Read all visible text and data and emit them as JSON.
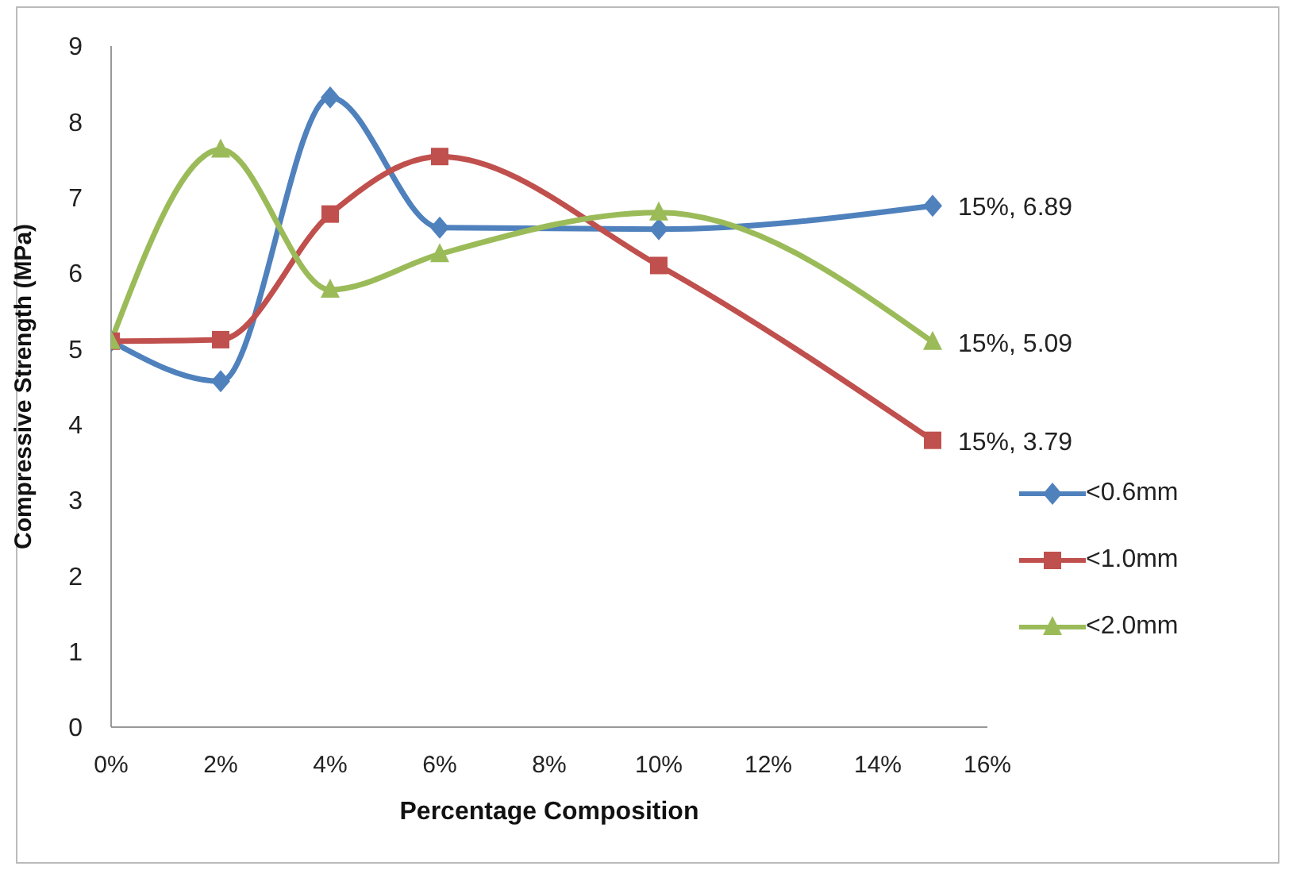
{
  "chart_data": {
    "type": "line",
    "xlabel": "Percentage Composition",
    "ylabel": "Compressive Strength (MPa)",
    "x": [
      0,
      2,
      4,
      6,
      10,
      15
    ],
    "xlim": [
      0,
      16
    ],
    "xticks": [
      {
        "value": 0,
        "label": "0%"
      },
      {
        "value": 2,
        "label": "2%"
      },
      {
        "value": 4,
        "label": "4%"
      },
      {
        "value": 6,
        "label": "6%"
      },
      {
        "value": 8,
        "label": "8%"
      },
      {
        "value": 10,
        "label": "10%"
      },
      {
        "value": 12,
        "label": "12%"
      },
      {
        "value": 14,
        "label": "14%"
      },
      {
        "value": 16,
        "label": "16%"
      }
    ],
    "ylim": [
      0,
      9
    ],
    "yticks": [
      0,
      1,
      2,
      3,
      4,
      5,
      6,
      7,
      8,
      9
    ],
    "grid": false,
    "legend": "right",
    "series": [
      {
        "name": "<0.6mm",
        "color": "#4f81bd",
        "marker": "diamond",
        "values": [
          5.1,
          4.57,
          8.32,
          6.6,
          6.58,
          6.89
        ],
        "value_labels": [
          null,
          null,
          null,
          null,
          null,
          "15%, 6.89"
        ]
      },
      {
        "name": "<1.0mm",
        "color": "#c0504d",
        "marker": "square",
        "values": [
          5.1,
          5.12,
          6.78,
          7.54,
          6.1,
          3.79
        ],
        "value_labels": [
          null,
          null,
          null,
          null,
          null,
          "15%, 3.79"
        ]
      },
      {
        "name": "<2.0mm",
        "color": "#9bbb59",
        "marker": "triangle",
        "values": [
          5.1,
          7.63,
          5.78,
          6.25,
          6.8,
          5.09
        ],
        "value_labels": [
          null,
          null,
          null,
          null,
          null,
          "15%, 5.09"
        ]
      }
    ]
  }
}
